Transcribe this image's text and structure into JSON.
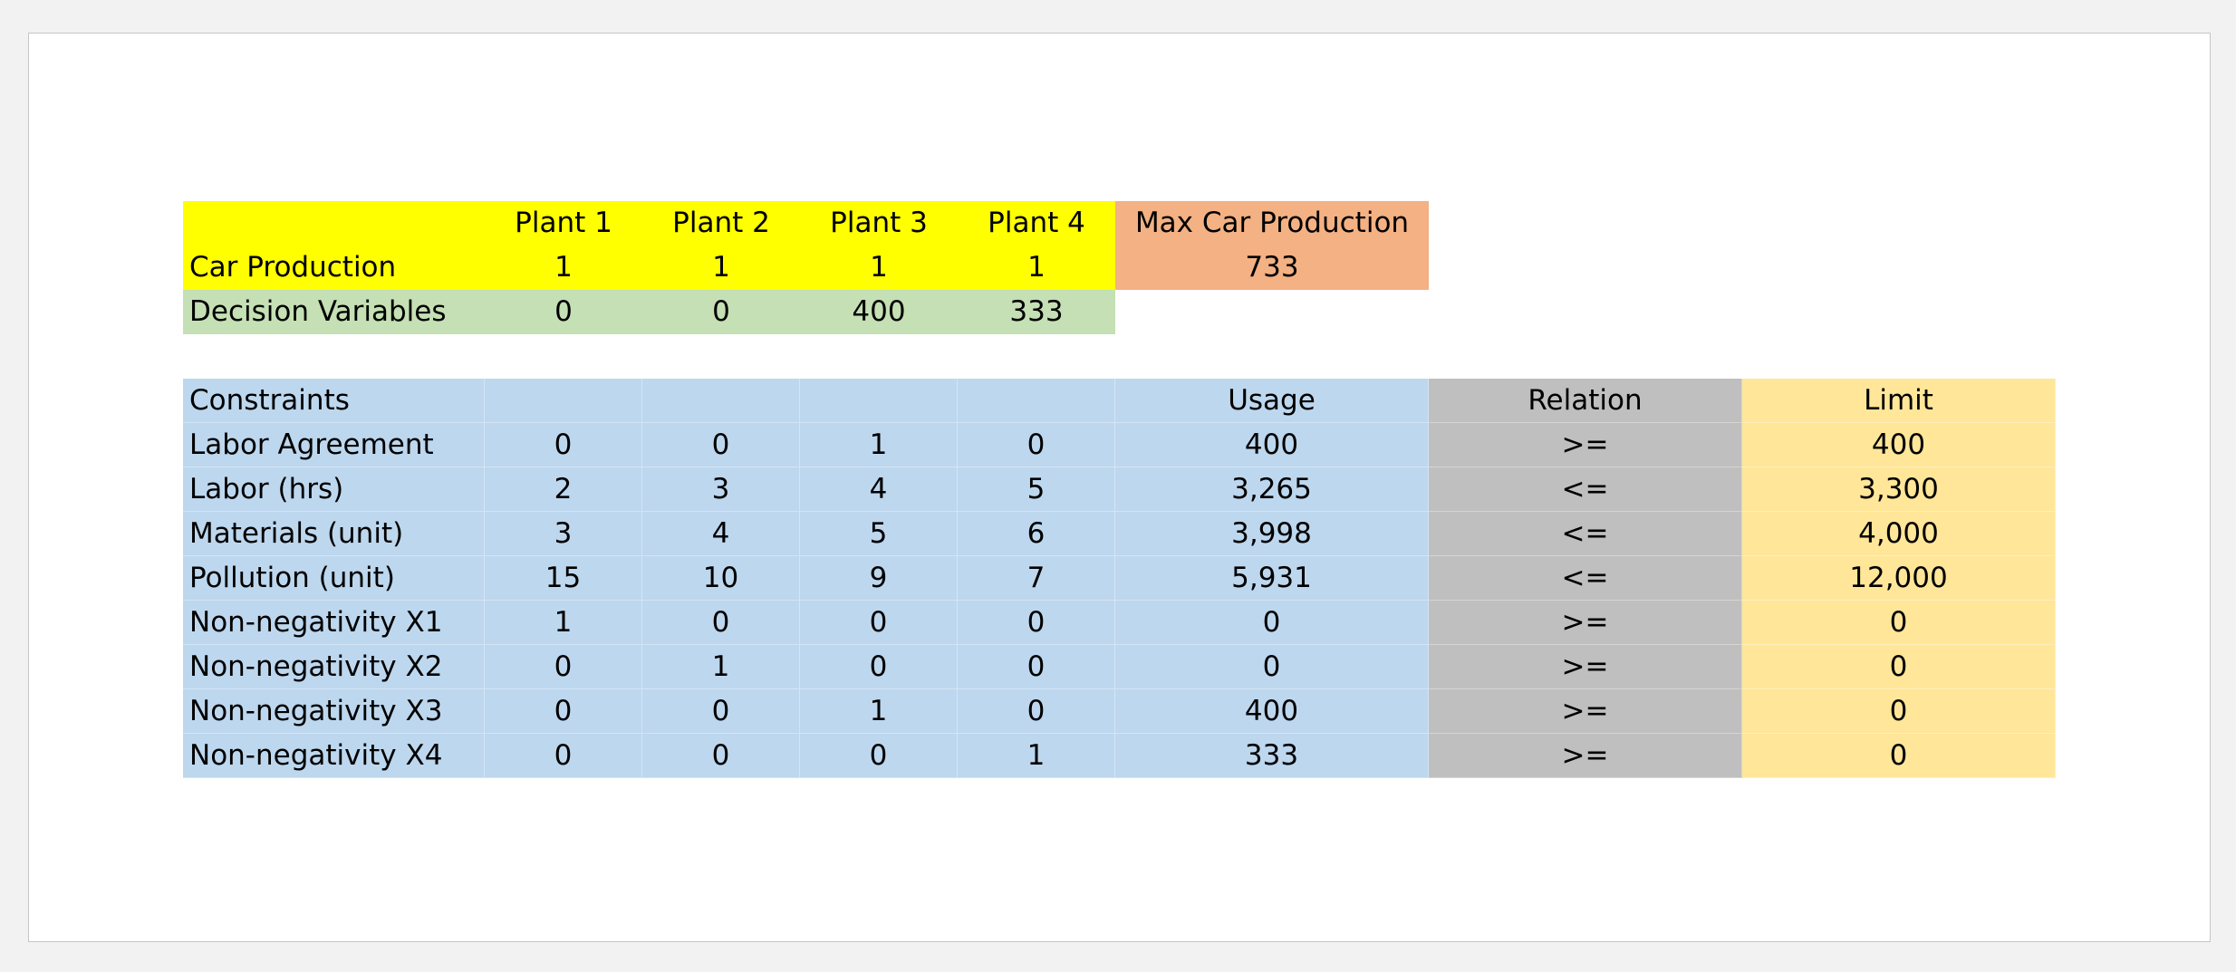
{
  "header": {
    "plants": [
      "Plant 1",
      "Plant 2",
      "Plant 3",
      "Plant 4"
    ],
    "max_label": "Max Car Production"
  },
  "car_production": {
    "label": "Car Production",
    "values": [
      "1",
      "1",
      "1",
      "1"
    ],
    "total": "733"
  },
  "decision_variables": {
    "label": "Decision Variables",
    "values": [
      "0",
      "0",
      "400",
      "333"
    ]
  },
  "constraints": {
    "title": "Constraints",
    "usage_label": "Usage",
    "relation_label": "Relation",
    "limit_label": "Limit",
    "rows": [
      {
        "label": "Labor Agreement",
        "coef": [
          "0",
          "0",
          "1",
          "0"
        ],
        "usage": "400",
        "relation": ">=",
        "limit": "400"
      },
      {
        "label": "Labor (hrs)",
        "coef": [
          "2",
          "3",
          "4",
          "5"
        ],
        "usage": "3,265",
        "relation": "<=",
        "limit": "3,300"
      },
      {
        "label": "Materials (unit)",
        "coef": [
          "3",
          "4",
          "5",
          "6"
        ],
        "usage": "3,998",
        "relation": "<=",
        "limit": "4,000"
      },
      {
        "label": "Pollution (unit)",
        "coef": [
          "15",
          "10",
          "9",
          "7"
        ],
        "usage": "5,931",
        "relation": "<=",
        "limit": "12,000"
      },
      {
        "label": "Non-negativity X1",
        "coef": [
          "1",
          "0",
          "0",
          "0"
        ],
        "usage": "0",
        "relation": ">=",
        "limit": "0"
      },
      {
        "label": "Non-negativity X2",
        "coef": [
          "0",
          "1",
          "0",
          "0"
        ],
        "usage": "0",
        "relation": ">=",
        "limit": "0"
      },
      {
        "label": "Non-negativity X3",
        "coef": [
          "0",
          "0",
          "1",
          "0"
        ],
        "usage": "400",
        "relation": ">=",
        "limit": "0"
      },
      {
        "label": "Non-negativity X4",
        "coef": [
          "0",
          "0",
          "0",
          "1"
        ],
        "usage": "333",
        "relation": ">=",
        "limit": "0"
      }
    ]
  },
  "colors": {
    "objective": "#ffff00",
    "max_production": "#f4b183",
    "decision_variables": "#c5e0b4",
    "constraints": "#bdd7ee",
    "relation": "#bfbfbf",
    "limit": "#ffe699"
  }
}
